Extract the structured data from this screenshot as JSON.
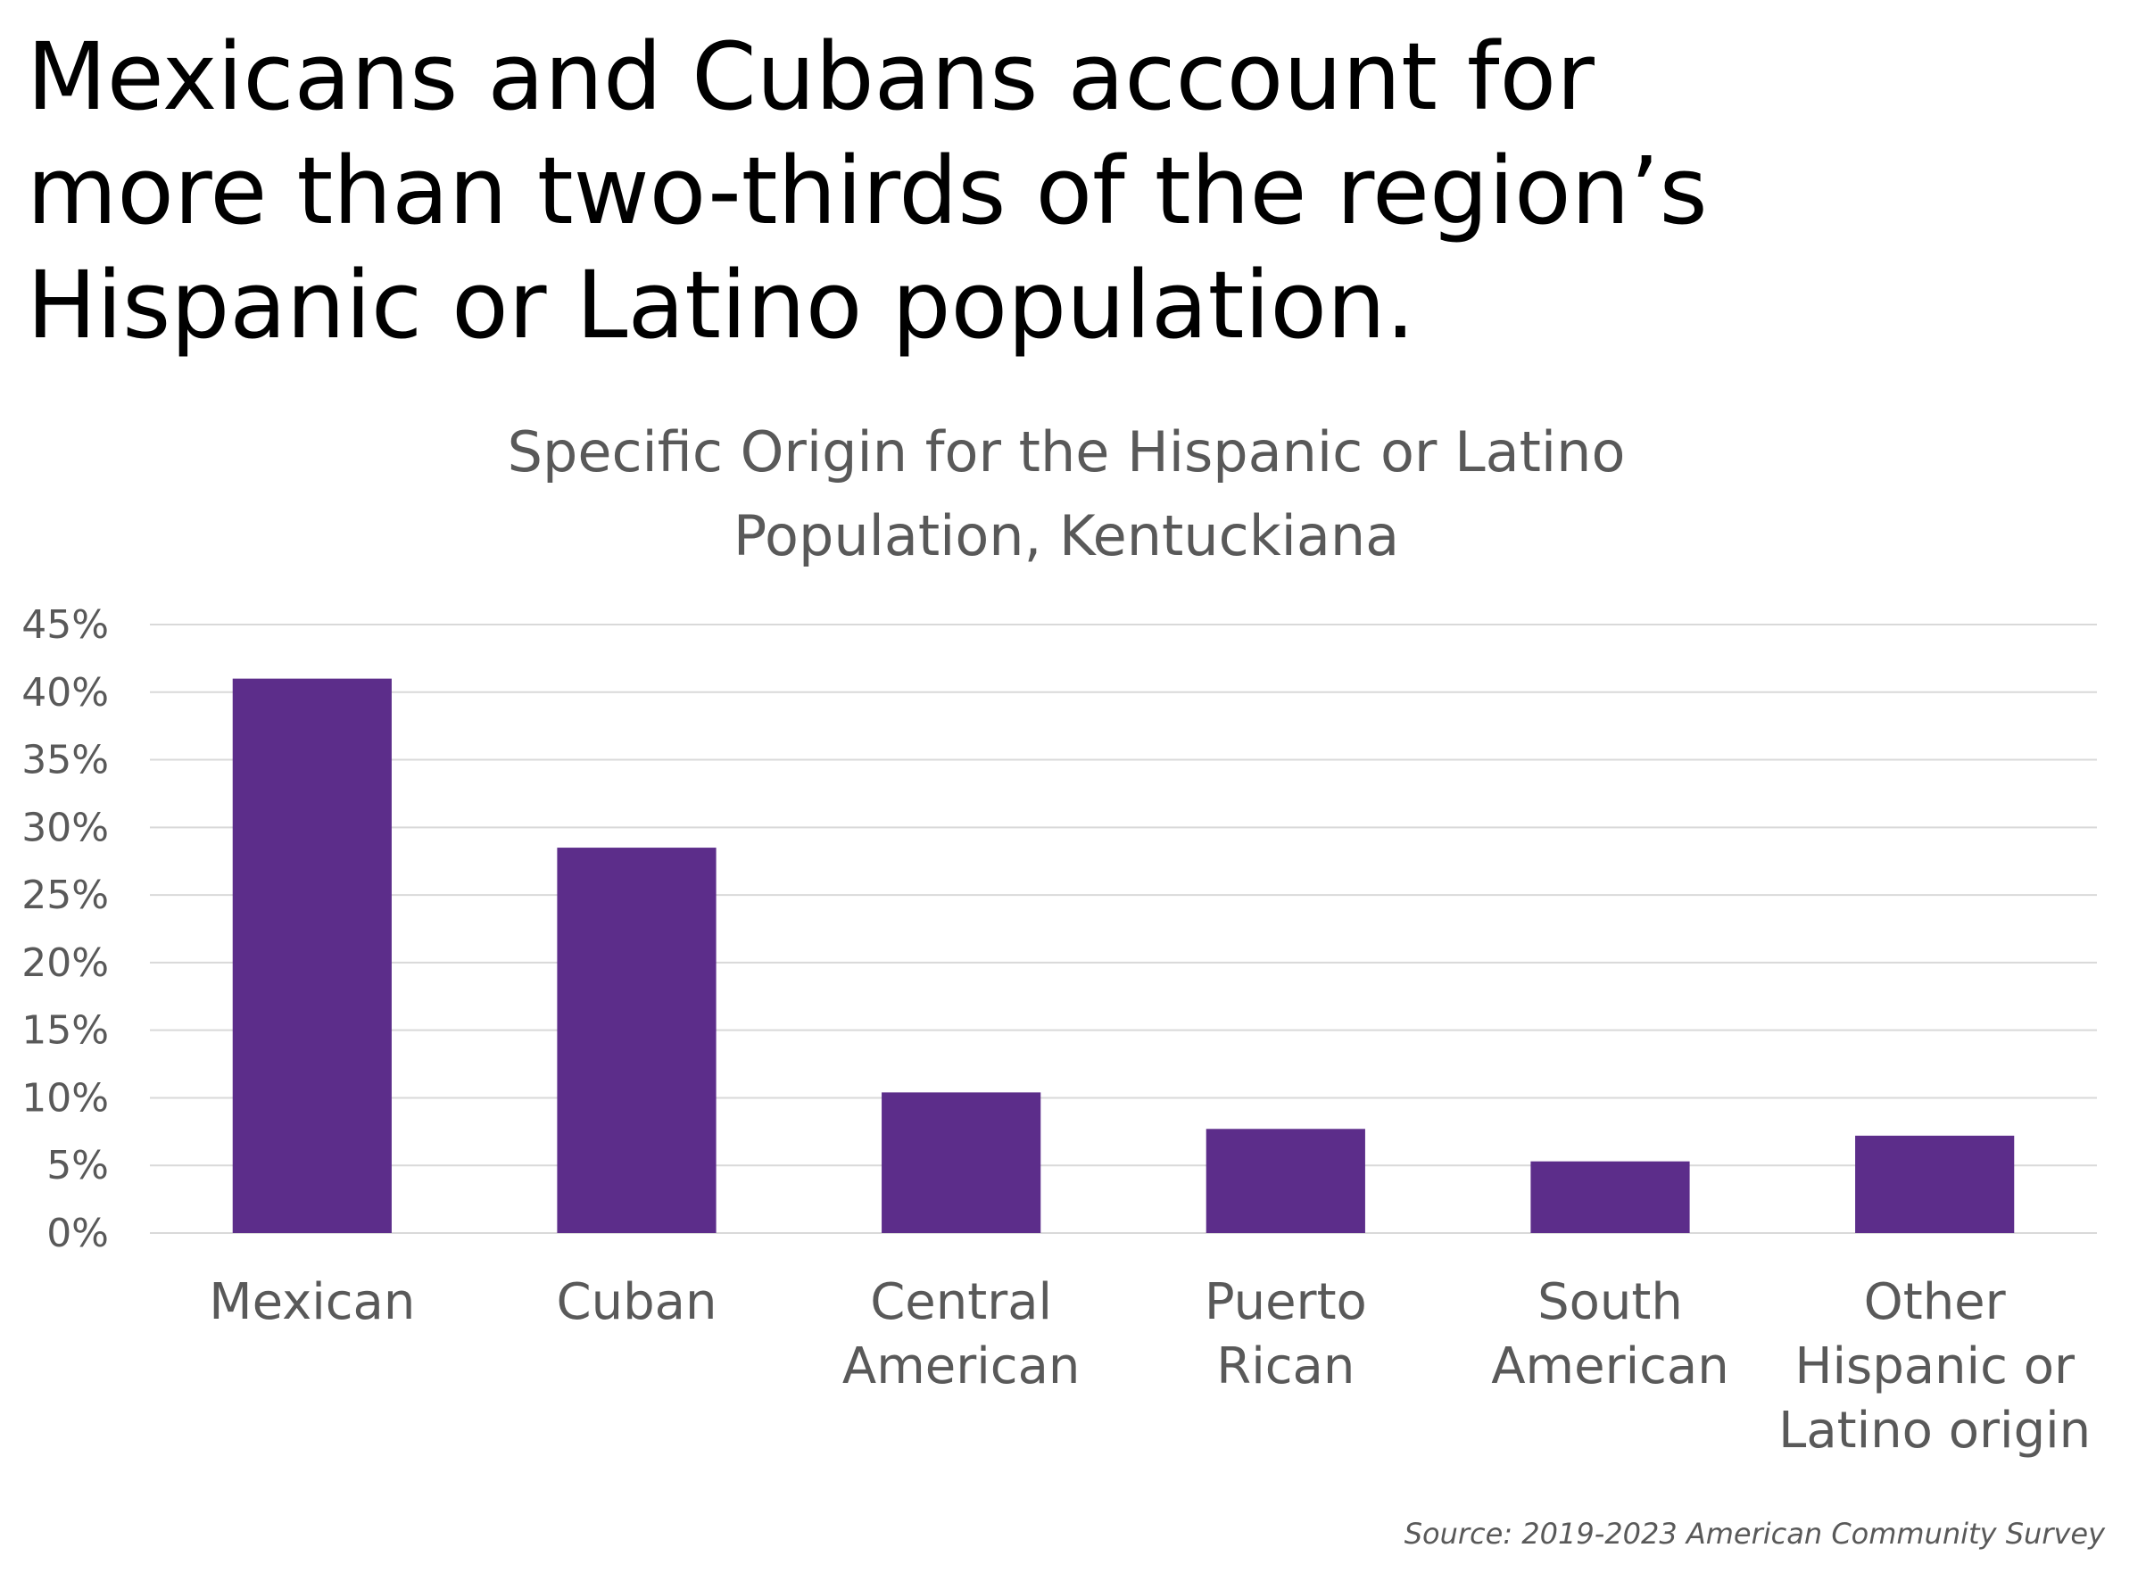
{
  "headline": {
    "lines": [
      "Mexicans and Cubans account for",
      "more than two-thirds of the region’s",
      "Hispanic or Latino population."
    ]
  },
  "chart_data": {
    "type": "bar",
    "title": "Specific Origin for the Hispanic or Latino Population, Kentuckiana",
    "title_lines": [
      "Specific Origin for the Hispanic or Latino",
      "Population, Kentuckiana"
    ],
    "categories": [
      "Mexican",
      "Cuban",
      "Central American",
      "Puerto Rican",
      "South American",
      "Other Hispanic or Latino origin"
    ],
    "category_lines": [
      [
        "Mexican"
      ],
      [
        "Cuban"
      ],
      [
        "Central",
        "American"
      ],
      [
        "Puerto",
        "Rican"
      ],
      [
        "South",
        "American"
      ],
      [
        "Other",
        "Hispanic or",
        "Latino origin"
      ]
    ],
    "values": [
      41.0,
      28.5,
      10.4,
      7.7,
      5.3,
      7.2
    ],
    "value_unit": "%",
    "ylim": [
      0,
      45
    ],
    "yticks": [
      0,
      5,
      10,
      15,
      20,
      25,
      30,
      35,
      40,
      45
    ],
    "ytick_labels": [
      "0%",
      "5%",
      "10%",
      "15%",
      "20%",
      "25%",
      "30%",
      "35%",
      "40%",
      "45%"
    ],
    "xlabel": "",
    "ylabel": "",
    "grid": true,
    "legend": "none",
    "bar_color": "#5c2d8a",
    "grid_color": "#d9d9d9",
    "text_color": "#595959"
  },
  "source": {
    "text": "Source: 2019-2023 American Community Survey"
  }
}
